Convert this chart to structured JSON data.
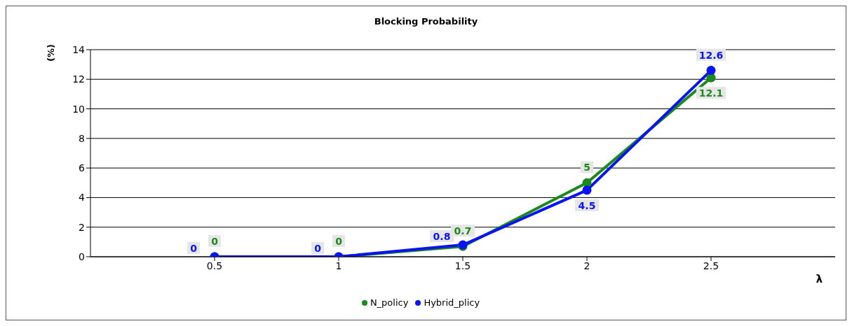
{
  "chart_data": {
    "type": "line",
    "title": "Blocking Probability",
    "xlabel": "λ",
    "ylabel": "(%)",
    "x": [
      0.5,
      1,
      1.5,
      2,
      2.5
    ],
    "series": [
      {
        "name": "N_policy",
        "color": "#1a8a1a",
        "values": [
          0,
          0,
          0.7,
          5,
          12.1
        ]
      },
      {
        "name": "Hybrid_plicy",
        "color": "#0a14f0",
        "values": [
          0,
          0,
          0.8,
          4.5,
          12.6
        ]
      }
    ],
    "xlim": [
      0,
      3
    ],
    "xticks": [
      0.5,
      1,
      1.5,
      2,
      2.5
    ],
    "ylim": [
      0,
      14
    ],
    "yticks": [
      0,
      2,
      4,
      6,
      8,
      10,
      12,
      14
    ],
    "grid": "y",
    "legend": "bottom",
    "marker": "circle",
    "line_style": "solid",
    "data_labels": true
  }
}
